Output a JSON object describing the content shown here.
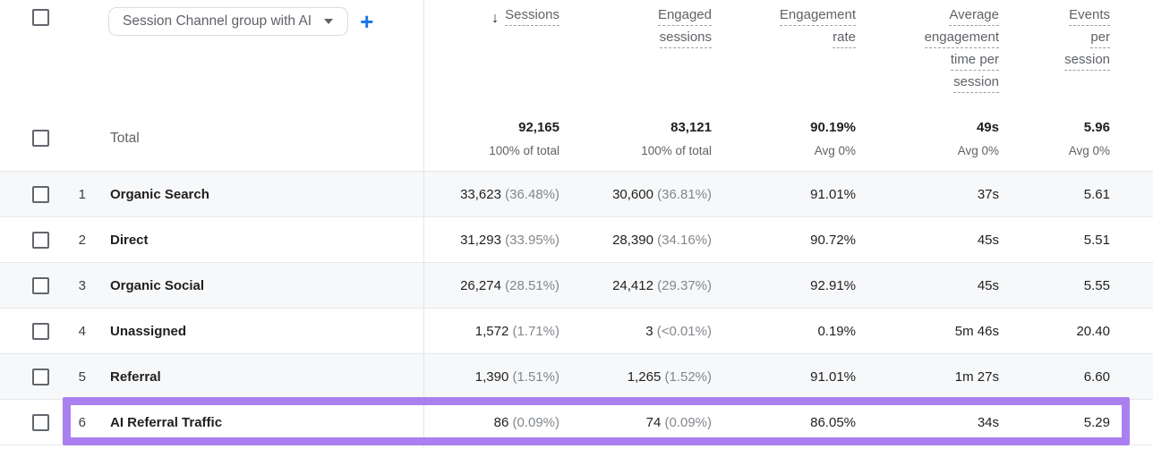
{
  "toolbar": {
    "dimension_dropdown": {
      "value": "Session Channel group with AI"
    },
    "add_button_label": "+"
  },
  "columns": {
    "sessions": {
      "sort_icon": "↓",
      "lines": [
        "Sessions"
      ]
    },
    "engaged_sessions": {
      "lines": [
        "Engaged",
        "sessions"
      ]
    },
    "engagement_rate": {
      "lines": [
        "Engagement",
        "rate"
      ]
    },
    "avg_engagement_time": {
      "lines": [
        "Average",
        "engagement",
        "time per",
        "session"
      ]
    },
    "events_per_session": {
      "lines": [
        "Events",
        "per",
        "session"
      ]
    }
  },
  "total": {
    "label": "Total",
    "sessions": {
      "value": "92,165",
      "sub": "100% of total"
    },
    "engaged_sessions": {
      "value": "83,121",
      "sub": "100% of total"
    },
    "engagement_rate": {
      "value": "90.19%",
      "sub": "Avg 0%"
    },
    "avg_engagement_time": {
      "value": "49s",
      "sub": "Avg 0%"
    },
    "events_per_session": {
      "value": "5.96",
      "sub": "Avg 0%"
    }
  },
  "rows": [
    {
      "index": "1",
      "channel": "Organic Search",
      "sessions": "33,623",
      "sessions_pct": "(36.48%)",
      "engaged": "30,600",
      "engaged_pct": "(36.81%)",
      "engagement_rate": "91.01%",
      "avg_engagement_time": "37s",
      "events_per_session": "5.61",
      "highlighted": false
    },
    {
      "index": "2",
      "channel": "Direct",
      "sessions": "31,293",
      "sessions_pct": "(33.95%)",
      "engaged": "28,390",
      "engaged_pct": "(34.16%)",
      "engagement_rate": "90.72%",
      "avg_engagement_time": "45s",
      "events_per_session": "5.51",
      "highlighted": false
    },
    {
      "index": "3",
      "channel": "Organic Social",
      "sessions": "26,274",
      "sessions_pct": "(28.51%)",
      "engaged": "24,412",
      "engaged_pct": "(29.37%)",
      "engagement_rate": "92.91%",
      "avg_engagement_time": "45s",
      "events_per_session": "5.55",
      "highlighted": false
    },
    {
      "index": "4",
      "channel": "Unassigned",
      "sessions": "1,572",
      "sessions_pct": "(1.71%)",
      "engaged": "3",
      "engaged_pct": "(<0.01%)",
      "engagement_rate": "0.19%",
      "avg_engagement_time": "5m 46s",
      "events_per_session": "20.40",
      "highlighted": false
    },
    {
      "index": "5",
      "channel": "Referral",
      "sessions": "1,390",
      "sessions_pct": "(1.51%)",
      "engaged": "1,265",
      "engaged_pct": "(1.52%)",
      "engagement_rate": "91.01%",
      "avg_engagement_time": "1m 27s",
      "events_per_session": "6.60",
      "highlighted": false
    },
    {
      "index": "6",
      "channel": "AI Referral Traffic",
      "sessions": "86",
      "sessions_pct": "(0.09%)",
      "engaged": "74",
      "engaged_pct": "(0.09%)",
      "engagement_rate": "86.05%",
      "avg_engagement_time": "34s",
      "events_per_session": "5.29",
      "highlighted": true
    }
  ],
  "colors": {
    "highlight_purple": "#aa80f0",
    "accent_blue": "#1a73e8"
  }
}
